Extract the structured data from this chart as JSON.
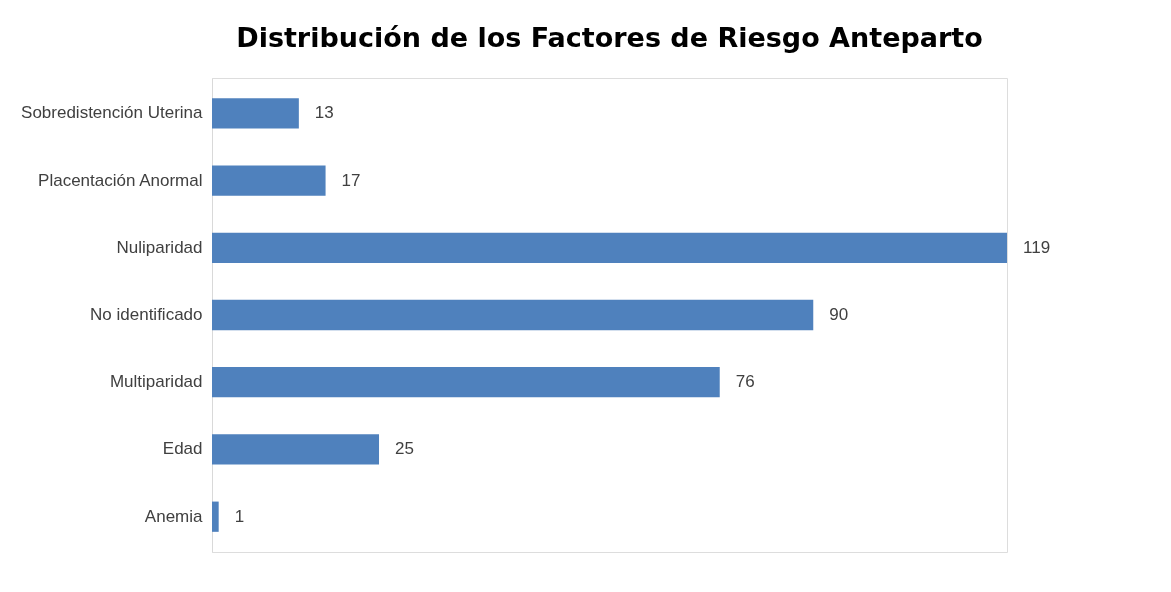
{
  "chart_data": {
    "type": "bar",
    "orientation": "horizontal",
    "title": "Distribución de los Factores de Riesgo Anteparto",
    "categories": [
      "Sobredistención Uterina",
      "Placentación Anormal",
      "Nuliparidad",
      "No identificado",
      "Multiparidad",
      "Edad",
      "Anemia"
    ],
    "values": [
      13,
      17,
      119,
      90,
      76,
      25,
      1
    ],
    "color": "#4f81bd",
    "data_labels": true,
    "grid": false
  }
}
